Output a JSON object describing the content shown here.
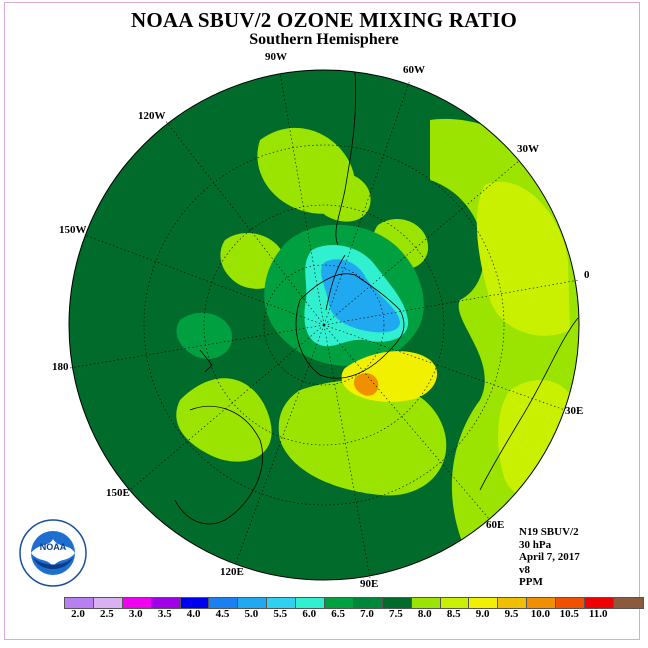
{
  "title": "NOAA SBUV/2 OZONE MIXING RATIO",
  "subtitle": "Southern Hemisphere",
  "longitude_labels": [
    "90W",
    "60W",
    "30W",
    "0",
    "30E",
    "60E",
    "90E",
    "120E",
    "150E",
    "180",
    "150W",
    "120W"
  ],
  "info": {
    "satellite": "N19 SBUV/2",
    "level": "30 hPa",
    "date": "April 7, 2017",
    "version": "v8",
    "units": "PPM"
  },
  "legend": {
    "ticks": [
      "2.0",
      "2.5",
      "3.0",
      "3.5",
      "4.0",
      "4.5",
      "5.0",
      "5.5",
      "6.0",
      "6.5",
      "7.0",
      "7.5",
      "8.0",
      "8.5",
      "9.0",
      "9.5",
      "10.0",
      "10.5",
      "11.0"
    ],
    "colors": [
      "#b77ff0",
      "#d9b0f0",
      "#f000f0",
      "#a000e8",
      "#0000f0",
      "#1a7ff0",
      "#20a8f0",
      "#30d0f0",
      "#30f0d0",
      "#00a040",
      "#00883a",
      "#006b2a",
      "#9be300",
      "#c8f000",
      "#f0f000",
      "#f0c000",
      "#f09000",
      "#f05000",
      "#f00000",
      "#8b5a3c"
    ]
  },
  "logo": {
    "text": "NOAA",
    "ring_text": "NATIONAL OCEANIC AND ATMOSPHERIC ADMINISTRATION",
    "bottom_text": "U.S. DEPARTMENT OF COMMERCE"
  }
}
